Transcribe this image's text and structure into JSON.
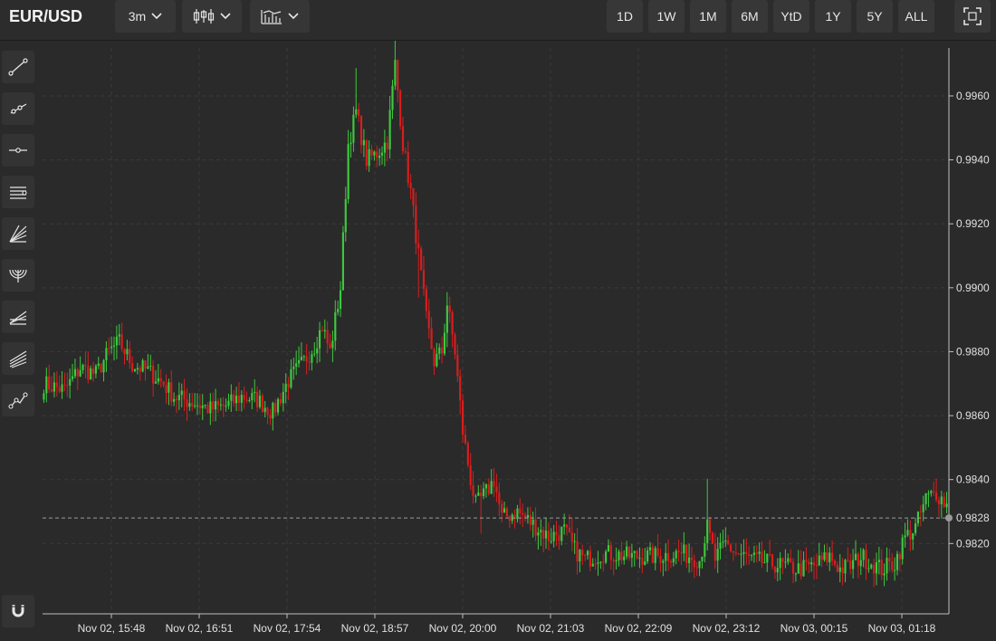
{
  "header": {
    "symbol": "EUR/USD",
    "interval": "3m",
    "chart_type_icon": "candlestick-icon",
    "indicators_icon": "indicators-icon",
    "ranges": [
      "1D",
      "1W",
      "1M",
      "6M",
      "YtD",
      "1Y",
      "5Y",
      "ALL"
    ],
    "fullscreen_icon": "fullscreen-icon"
  },
  "toolbar": {
    "tools": [
      "trend-line-icon",
      "ray-icon",
      "horizontal-line-icon",
      "parallel-channel-icon",
      "fibonacci-fan-icon",
      "fibonacci-arc-icon",
      "fibonacci-retracement-icon",
      "regression-channel-icon",
      "path-icon"
    ],
    "magnet_icon": "magnet-icon"
  },
  "colors": {
    "up": "#3ec93e",
    "down": "#d81e1e",
    "background": "#2a2a2a",
    "grid": "#3a3a3a"
  },
  "chart_data": {
    "type": "candlestick",
    "symbol": "EUR/USD",
    "interval": "3m",
    "ylim": [
      0.9798,
      0.9975
    ],
    "y_ticks": [
      "0.9960",
      "0.9940",
      "0.9920",
      "0.9900",
      "0.9880",
      "0.9860",
      "0.9840",
      "0.9820"
    ],
    "x_ticks": [
      "Nov 02, 15:48",
      "Nov 02, 16:51",
      "Nov 02, 17:54",
      "Nov 02, 18:57",
      "Nov 02, 20:00",
      "Nov 02, 21:03",
      "Nov 02, 22:09",
      "Nov 02, 23:12",
      "Nov 03, 00:15",
      "Nov 03, 01:18"
    ],
    "last_price": "0.9828",
    "path": [
      [
        0,
        0.987
      ],
      [
        8,
        0.9868
      ],
      [
        14,
        0.9875
      ],
      [
        20,
        0.9873
      ],
      [
        25,
        0.988
      ],
      [
        29,
        0.9883
      ],
      [
        34,
        0.9876
      ],
      [
        40,
        0.9874
      ],
      [
        46,
        0.987
      ],
      [
        50,
        0.9866
      ],
      [
        58,
        0.9864
      ],
      [
        64,
        0.9862
      ],
      [
        70,
        0.9863
      ],
      [
        76,
        0.9866
      ],
      [
        82,
        0.9865
      ],
      [
        88,
        0.9861
      ],
      [
        94,
        0.9871
      ],
      [
        100,
        0.9877
      ],
      [
        104,
        0.9882
      ],
      [
        107,
        0.9888
      ],
      [
        110,
        0.988
      ],
      [
        114,
        0.99
      ],
      [
        117,
        0.9945
      ],
      [
        120,
        0.9955
      ],
      [
        124,
        0.994
      ],
      [
        128,
        0.9942
      ],
      [
        132,
        0.9946
      ],
      [
        135,
        0.997
      ],
      [
        138,
        0.9945
      ],
      [
        141,
        0.993
      ],
      [
        144,
        0.991
      ],
      [
        147,
        0.989
      ],
      [
        150,
        0.9877
      ],
      [
        153,
        0.988
      ],
      [
        155,
        0.9895
      ],
      [
        158,
        0.988
      ],
      [
        161,
        0.9855
      ],
      [
        164,
        0.984
      ],
      [
        166,
        0.9832
      ],
      [
        170,
        0.9836
      ],
      [
        173,
        0.984
      ],
      [
        176,
        0.9828
      ],
      [
        182,
        0.983
      ],
      [
        188,
        0.9826
      ],
      [
        194,
        0.9822
      ],
      [
        200,
        0.9824
      ],
      [
        204,
        0.9818
      ],
      [
        208,
        0.9815
      ],
      [
        215,
        0.9817
      ],
      [
        225,
        0.9816
      ],
      [
        235,
        0.9816
      ],
      [
        245,
        0.9817
      ],
      [
        252,
        0.9815
      ],
      [
        255,
        0.9825
      ],
      [
        258,
        0.9815
      ],
      [
        262,
        0.982
      ],
      [
        266,
        0.9817
      ],
      [
        272,
        0.9815
      ],
      [
        278,
        0.9814
      ],
      [
        284,
        0.9813
      ],
      [
        290,
        0.9812
      ],
      [
        296,
        0.9813
      ],
      [
        302,
        0.9816
      ],
      [
        306,
        0.9812
      ],
      [
        310,
        0.9813
      ],
      [
        314,
        0.9816
      ],
      [
        318,
        0.9814
      ],
      [
        322,
        0.9812
      ],
      [
        327,
        0.9814
      ],
      [
        331,
        0.9822
      ],
      [
        335,
        0.9825
      ],
      [
        339,
        0.9834
      ],
      [
        343,
        0.9836
      ],
      [
        347,
        0.9832
      ]
    ]
  }
}
